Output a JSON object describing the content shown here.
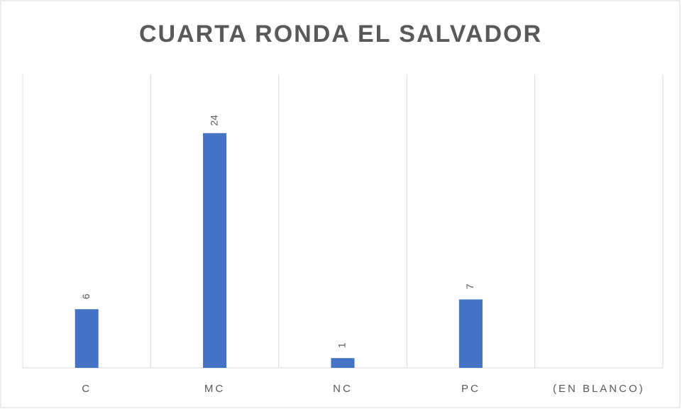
{
  "chart_data": {
    "type": "bar",
    "title": "CUARTA RONDA EL SALVADOR",
    "categories": [
      "C",
      "MC",
      "NC",
      "PC",
      "(EN BLANCO)"
    ],
    "values": [
      6,
      24,
      1,
      7,
      null
    ],
    "color": "#4472c4",
    "ylim": [
      0,
      30
    ]
  }
}
